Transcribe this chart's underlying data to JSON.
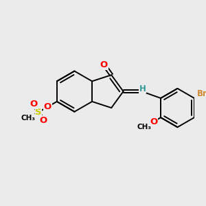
{
  "bg_color": "#ebebeb",
  "bond_color": "#000000",
  "bond_width": 1.4,
  "atom_colors": {
    "O": "#ff0000",
    "S": "#cccc00",
    "Br": "#cc8833",
    "H": "#339999"
  },
  "font_size": 8.5
}
